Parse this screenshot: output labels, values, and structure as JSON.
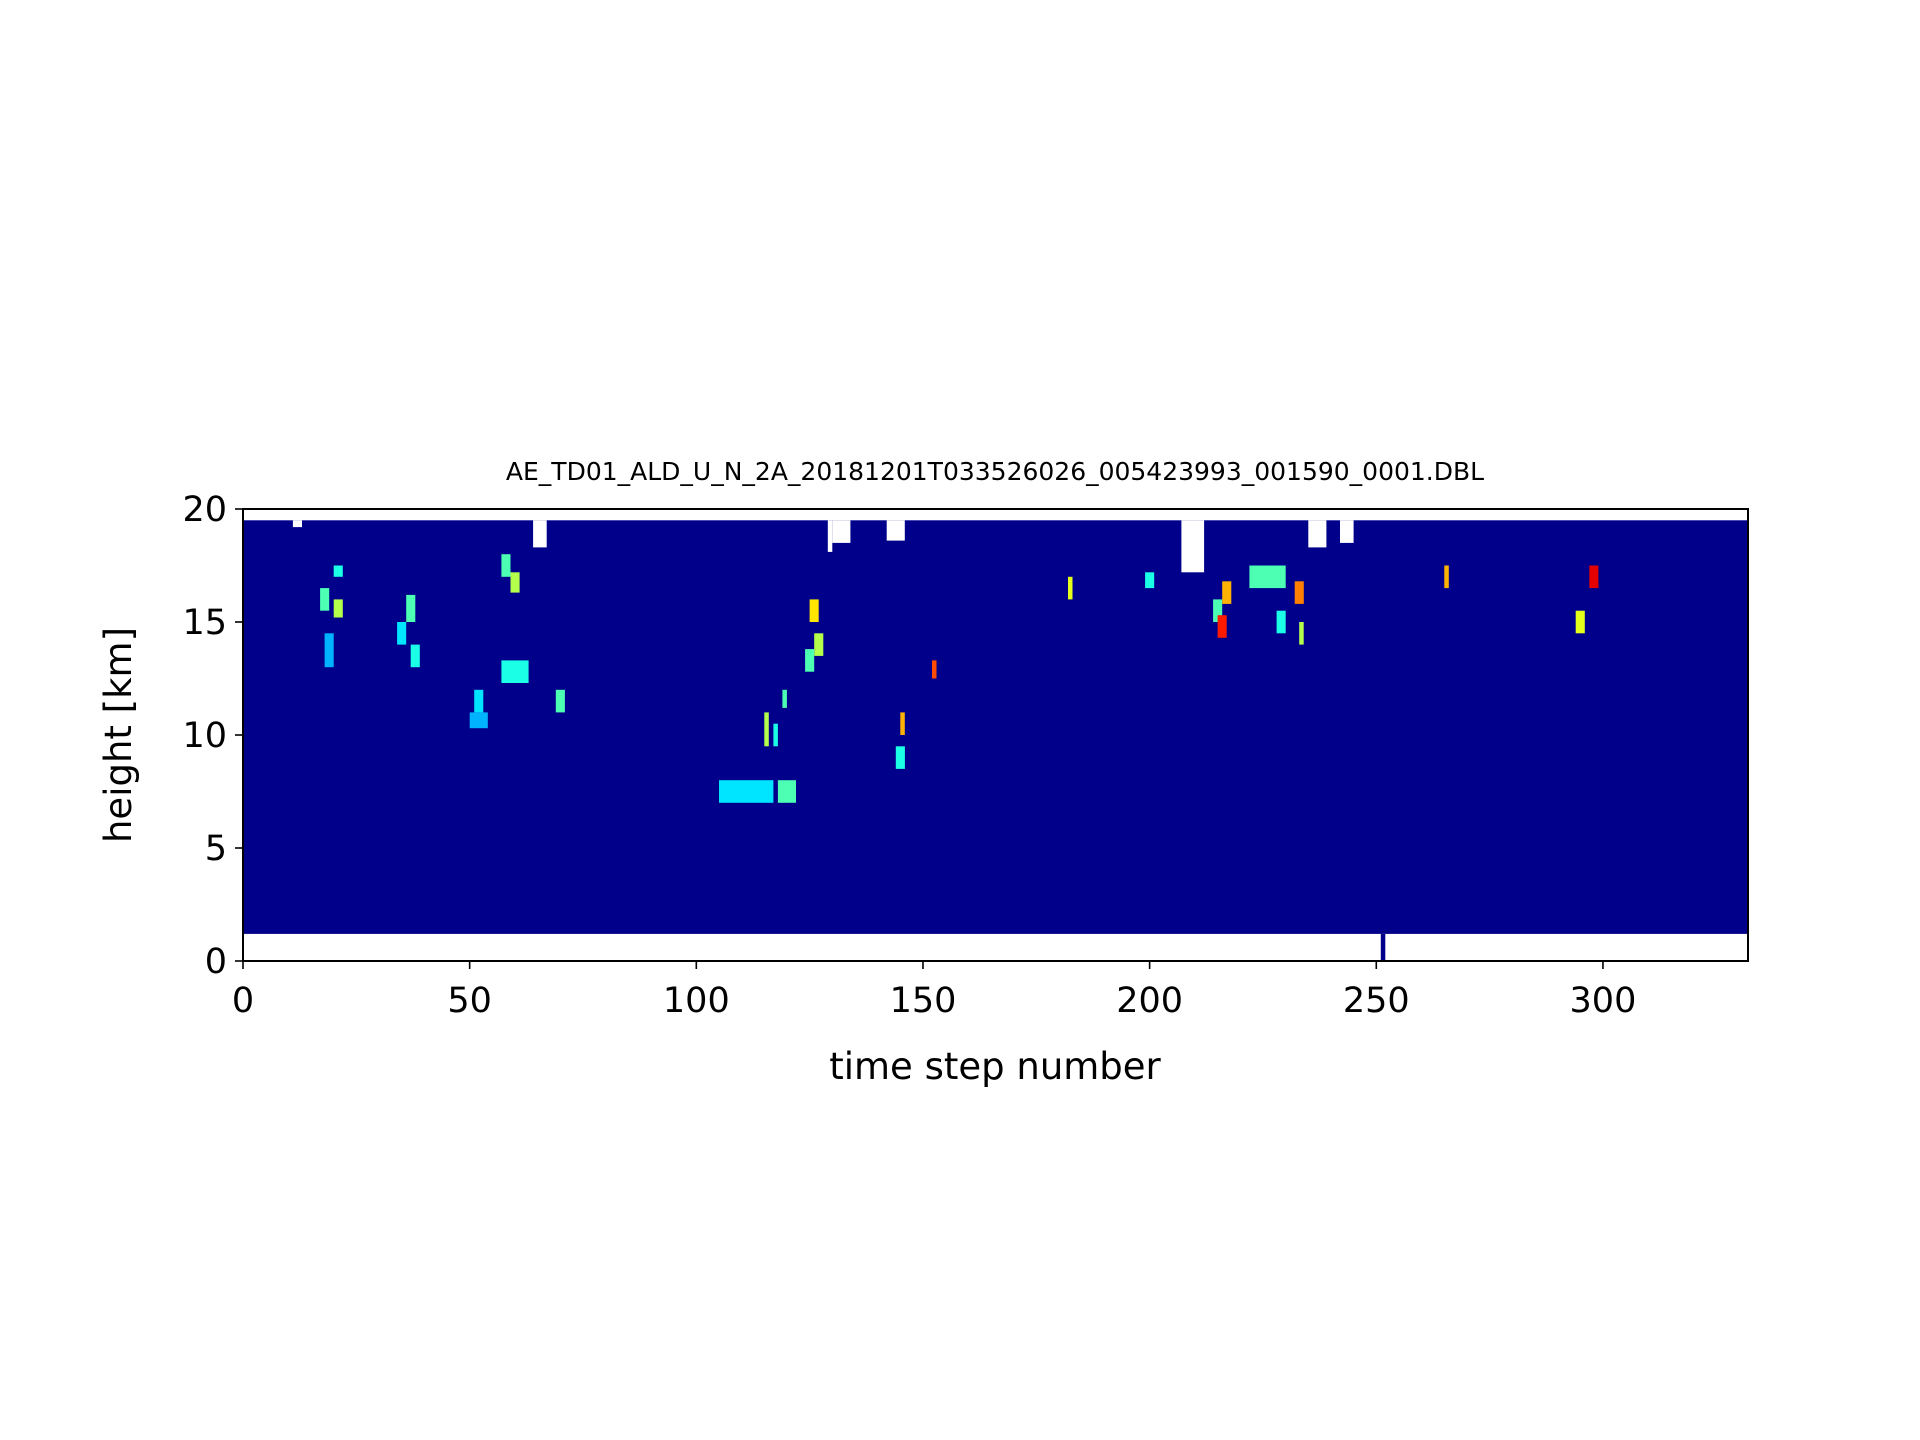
{
  "chart_data": {
    "type": "heatmap",
    "title": "AE_TD01_ALD_U_N_2A_20181201T033526026_005423993_001590_0001.DBL",
    "xlabel": "time step number",
    "ylabel": "height [km]",
    "xlim": [
      0,
      332
    ],
    "ylim": [
      0,
      20
    ],
    "xticks": [
      0,
      50,
      100,
      150,
      200,
      250,
      300
    ],
    "yticks": [
      0,
      5,
      10,
      15,
      20
    ],
    "colormap": "jet",
    "background_color": "#00008b",
    "data_bottom_km": 1.2,
    "typical_top_km": 19.5,
    "top_gaps": [
      {
        "x": [
          0,
          1
        ],
        "top_km": 19.8
      },
      {
        "x": [
          11,
          13
        ],
        "top_km": 19.2
      },
      {
        "x": [
          64,
          67
        ],
        "top_km": 18.3
      },
      {
        "x": [
          129,
          130
        ],
        "top_km": 18.1
      },
      {
        "x": [
          130,
          134
        ],
        "top_km": 18.5
      },
      {
        "x": [
          142,
          146
        ],
        "top_km": 18.6
      },
      {
        "x": [
          207,
          212
        ],
        "top_km": 17.2
      },
      {
        "x": [
          235,
          239
        ],
        "top_km": 18.3
      },
      {
        "x": [
          242,
          245
        ],
        "top_km": 18.5
      }
    ],
    "bottom_extension": {
      "x": [
        251,
        252
      ],
      "bottom_km": 0.0
    },
    "hotspots": [
      {
        "x": [
          17,
          19
        ],
        "y": [
          15.5,
          16.5
        ],
        "v": 0.45
      },
      {
        "x": [
          20,
          22
        ],
        "y": [
          15.2,
          16.0
        ],
        "v": 0.55
      },
      {
        "x": [
          18,
          20
        ],
        "y": [
          13.0,
          14.5
        ],
        "v": 0.3
      },
      {
        "x": [
          20,
          22
        ],
        "y": [
          17.0,
          17.5
        ],
        "v": 0.4
      },
      {
        "x": [
          34,
          36
        ],
        "y": [
          14.0,
          15.0
        ],
        "v": 0.35
      },
      {
        "x": [
          36,
          38
        ],
        "y": [
          15.0,
          16.2
        ],
        "v": 0.45
      },
      {
        "x": [
          37,
          39
        ],
        "y": [
          13.0,
          14.0
        ],
        "v": 0.4
      },
      {
        "x": [
          57,
          59
        ],
        "y": [
          17.0,
          18.0
        ],
        "v": 0.45
      },
      {
        "x": [
          59,
          61
        ],
        "y": [
          16.3,
          17.2
        ],
        "v": 0.55
      },
      {
        "x": [
          57,
          63
        ],
        "y": [
          12.3,
          13.3
        ],
        "v": 0.4
      },
      {
        "x": [
          51,
          53
        ],
        "y": [
          11.0,
          12.0
        ],
        "v": 0.35
      },
      {
        "x": [
          50,
          54
        ],
        "y": [
          10.3,
          11.0
        ],
        "v": 0.3
      },
      {
        "x": [
          69,
          71
        ],
        "y": [
          11.0,
          12.0
        ],
        "v": 0.45
      },
      {
        "x": [
          105,
          117
        ],
        "y": [
          7.0,
          8.0
        ],
        "v": 0.35
      },
      {
        "x": [
          118,
          122
        ],
        "y": [
          7.0,
          8.0
        ],
        "v": 0.45
      },
      {
        "x": [
          115,
          116
        ],
        "y": [
          9.5,
          11.0
        ],
        "v": 0.55
      },
      {
        "x": [
          117,
          118
        ],
        "y": [
          9.5,
          10.5
        ],
        "v": 0.4
      },
      {
        "x": [
          119,
          120
        ],
        "y": [
          11.2,
          12.0
        ],
        "v": 0.45
      },
      {
        "x": [
          125,
          127
        ],
        "y": [
          15.0,
          16.0
        ],
        "v": 0.65
      },
      {
        "x": [
          126,
          128
        ],
        "y": [
          13.5,
          14.5
        ],
        "v": 0.55
      },
      {
        "x": [
          124,
          126
        ],
        "y": [
          12.8,
          13.8
        ],
        "v": 0.45
      },
      {
        "x": [
          145,
          146
        ],
        "y": [
          10.0,
          11.0
        ],
        "v": 0.7
      },
      {
        "x": [
          144,
          146
        ],
        "y": [
          8.5,
          9.5
        ],
        "v": 0.4
      },
      {
        "x": [
          152,
          153
        ],
        "y": [
          12.5,
          13.3
        ],
        "v": 0.8
      },
      {
        "x": [
          182,
          183
        ],
        "y": [
          16.0,
          17.0
        ],
        "v": 0.6
      },
      {
        "x": [
          199,
          201
        ],
        "y": [
          16.5,
          17.2
        ],
        "v": 0.4
      },
      {
        "x": [
          214,
          216
        ],
        "y": [
          15.0,
          16.0
        ],
        "v": 0.45
      },
      {
        "x": [
          216,
          218
        ],
        "y": [
          15.8,
          16.8
        ],
        "v": 0.7
      },
      {
        "x": [
          215,
          217
        ],
        "y": [
          14.3,
          15.3
        ],
        "v": 0.85
      },
      {
        "x": [
          222,
          230
        ],
        "y": [
          16.5,
          17.5
        ],
        "v": 0.45
      },
      {
        "x": [
          228,
          230
        ],
        "y": [
          14.5,
          15.5
        ],
        "v": 0.4
      },
      {
        "x": [
          232,
          234
        ],
        "y": [
          15.8,
          16.8
        ],
        "v": 0.75
      },
      {
        "x": [
          233,
          234
        ],
        "y": [
          14.0,
          15.0
        ],
        "v": 0.55
      },
      {
        "x": [
          265,
          266
        ],
        "y": [
          16.5,
          17.5
        ],
        "v": 0.7
      },
      {
        "x": [
          294,
          296
        ],
        "y": [
          14.5,
          15.5
        ],
        "v": 0.6
      },
      {
        "x": [
          297,
          299
        ],
        "y": [
          16.5,
          17.5
        ],
        "v": 0.9
      }
    ]
  }
}
